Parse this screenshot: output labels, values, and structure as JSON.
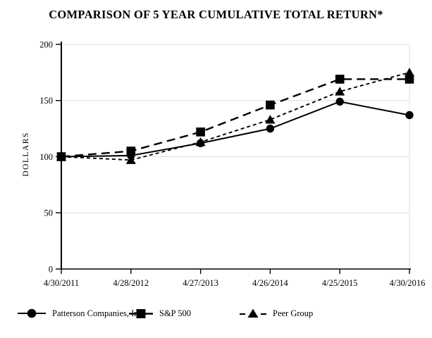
{
  "chart_data": {
    "type": "line",
    "title": "COMPARISON OF 5 YEAR CUMULATIVE TOTAL RETURN*",
    "xlabel": "",
    "ylabel": "DOLLARS",
    "categories": [
      "4/30/2011",
      "4/28/2012",
      "4/27/2013",
      "4/26/2014",
      "4/25/2015",
      "4/30/2016"
    ],
    "yticks": [
      0,
      50,
      100,
      150,
      200
    ],
    "ylim": [
      0,
      200
    ],
    "grid": "horizontal",
    "legend_position": "bottom",
    "colors": {
      "line": "#000000",
      "gridline": "#dcdcdc",
      "text": "#000000"
    },
    "series": [
      {
        "name": "Patterson Companies, Inc.",
        "marker": "circle",
        "line": "solid",
        "values": [
          100,
          101,
          112,
          125,
          149,
          137
        ]
      },
      {
        "name": "S&P 500",
        "marker": "square",
        "line": "long-dash",
        "values": [
          100,
          105,
          122,
          146,
          169,
          169
        ]
      },
      {
        "name": "Peer Group",
        "marker": "triangle",
        "line": "short-dash",
        "values": [
          100,
          97,
          113,
          133,
          158,
          175
        ]
      }
    ]
  }
}
